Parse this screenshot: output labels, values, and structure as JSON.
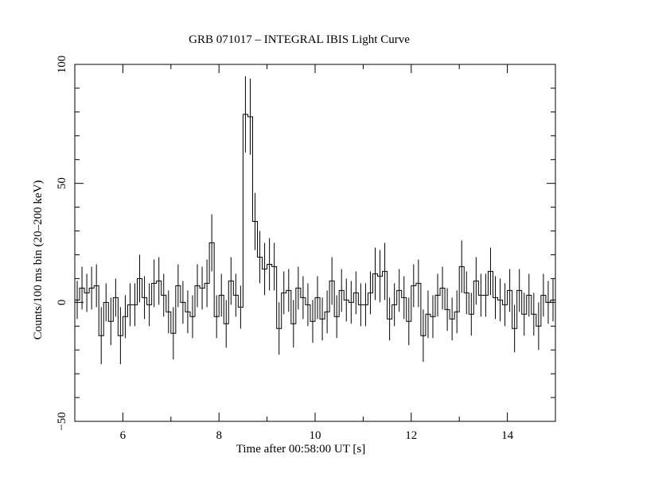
{
  "chart_data": {
    "type": "line",
    "title": "GRB 071017 – INTEGRAL IBIS Light Curve",
    "xlabel": "Time after 00:58:00 UT [s]",
    "ylabel": "Counts/100  ms bin (20–200 keV)",
    "xlim": [
      5,
      15
    ],
    "ylim": [
      -50,
      100
    ],
    "x_ticks": [
      6,
      8,
      10,
      12,
      14
    ],
    "y_ticks": [
      -50,
      0,
      50,
      100
    ],
    "x_tick_labels": [
      "6",
      "8",
      "10",
      "12",
      "14"
    ],
    "y_tick_labels": [
      "−50",
      "0",
      "50",
      "100"
    ],
    "bin_width": 0.1,
    "grid": false,
    "series": [
      {
        "x": [
          5.0,
          5.1,
          5.2,
          5.3,
          5.4,
          5.5,
          5.6,
          5.7,
          5.8,
          5.9,
          6.0,
          6.1,
          6.2,
          6.3,
          6.4,
          6.5,
          6.6,
          6.7,
          6.8,
          6.9,
          7.0,
          7.1,
          7.2,
          7.3,
          7.4,
          7.5,
          7.6,
          7.7,
          7.8,
          7.9,
          8.0,
          8.1,
          8.2,
          8.3,
          8.4,
          8.5,
          8.6,
          8.7,
          8.8,
          8.9,
          9.0,
          9.1,
          9.2,
          9.3,
          9.4,
          9.5,
          9.6,
          9.7,
          9.8,
          9.9,
          10.0,
          10.1,
          10.2,
          10.3,
          10.4,
          10.5,
          10.6,
          10.7,
          10.8,
          10.9,
          11.0,
          11.1,
          11.2,
          11.3,
          11.4,
          11.5,
          11.6,
          11.7,
          11.8,
          11.9,
          12.0,
          12.1,
          12.2,
          12.3,
          12.4,
          12.5,
          12.6,
          12.7,
          12.8,
          12.9,
          13.0,
          13.1,
          13.2,
          13.3,
          13.4,
          13.5,
          13.6,
          13.7,
          13.8,
          13.9,
          14.0,
          14.1,
          14.2,
          14.3,
          14.4,
          14.5,
          14.6,
          14.7,
          14.8,
          14.9
        ],
        "values": [
          1,
          6,
          4,
          6,
          7,
          -14,
          0,
          -8,
          2,
          -14,
          -6,
          -1,
          -1,
          10,
          2,
          -1,
          8,
          9,
          3,
          -4,
          -13,
          7,
          0,
          -4,
          -6,
          7,
          6,
          8,
          25,
          -6,
          3,
          -9,
          9,
          3,
          -2,
          79,
          78,
          34,
          19,
          14,
          16,
          15,
          -11,
          4,
          5,
          -9,
          6,
          2,
          -1,
          -8,
          2,
          -7,
          -4,
          9,
          -6,
          5,
          1,
          0,
          4,
          -1,
          -1,
          4,
          12,
          11,
          13,
          -7,
          -1,
          5,
          2,
          -8,
          7,
          8,
          -14,
          -5,
          -6,
          3,
          6,
          -3,
          -7,
          -4,
          15,
          4,
          -5,
          9,
          3,
          3,
          13,
          2,
          1,
          -1,
          5,
          -11,
          5,
          -5,
          3,
          -5,
          -10,
          3,
          0,
          1
        ],
        "errors": [
          8,
          9,
          8,
          9,
          9,
          12,
          8,
          10,
          8,
          12,
          9,
          9,
          9,
          10,
          9,
          9,
          10,
          10,
          9,
          9,
          11,
          9,
          9,
          9,
          9,
          9,
          9,
          10,
          12,
          9,
          9,
          10,
          10,
          9,
          9,
          16,
          16,
          12,
          11,
          11,
          11,
          10,
          11,
          9,
          9,
          10,
          9,
          9,
          9,
          9,
          9,
          9,
          9,
          10,
          9,
          9,
          9,
          9,
          9,
          9,
          9,
          9,
          11,
          11,
          12,
          9,
          9,
          9,
          9,
          10,
          9,
          10,
          11,
          10,
          9,
          9,
          9,
          9,
          9,
          9,
          11,
          9,
          9,
          10,
          9,
          9,
          10,
          9,
          9,
          9,
          9,
          10,
          9,
          9,
          9,
          9,
          10,
          9,
          9,
          9
        ]
      }
    ]
  }
}
